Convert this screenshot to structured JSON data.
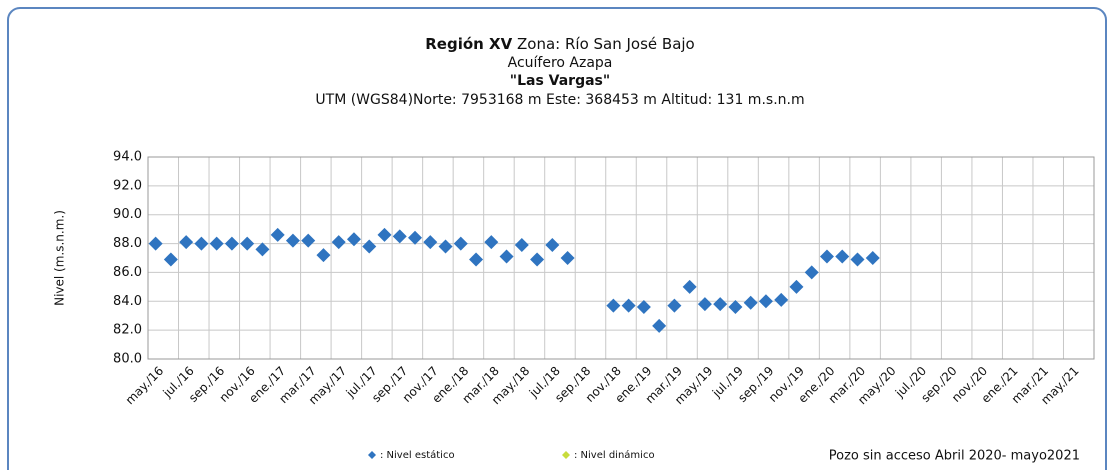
{
  "chart_data": {
    "type": "scatter",
    "title": "Región XV",
    "zone": "Zona: Río San José Bajo",
    "aquifer": "Acuífero Azapa",
    "well": "\"Las Vargas\"",
    "location": "UTM (WGS84)Norte: 7953168 m Este: 368453 m  Altitud: 131 m.s.n.m",
    "y_label": "Nivel (m.s.n.m.)",
    "annotation": "Pozo sin acceso  Abril 2020- mayo2021",
    "xlim": [
      "2016-05",
      "2021-07"
    ],
    "xticks": [
      {
        "value": "2016-05",
        "label": "may./16"
      },
      {
        "value": "2016-07",
        "label": "jul./16"
      },
      {
        "value": "2016-09",
        "label": "sep./16"
      },
      {
        "value": "2016-11",
        "label": "nov./16"
      },
      {
        "value": "2017-01",
        "label": "ene./17"
      },
      {
        "value": "2017-03",
        "label": "mar./17"
      },
      {
        "value": "2017-05",
        "label": "may./17"
      },
      {
        "value": "2017-07",
        "label": "jul./17"
      },
      {
        "value": "2017-09",
        "label": "sep./17"
      },
      {
        "value": "2017-11",
        "label": "nov./17"
      },
      {
        "value": "2018-01",
        "label": "ene./18"
      },
      {
        "value": "2018-03",
        "label": "mar./18"
      },
      {
        "value": "2018-05",
        "label": "may./18"
      },
      {
        "value": "2018-07",
        "label": "jul./18"
      },
      {
        "value": "2018-09",
        "label": "sep./18"
      },
      {
        "value": "2018-11",
        "label": "nov./18"
      },
      {
        "value": "2019-01",
        "label": "ene./19"
      },
      {
        "value": "2019-03",
        "label": "mar./19"
      },
      {
        "value": "2019-05",
        "label": "may./19"
      },
      {
        "value": "2019-07",
        "label": "jul./19"
      },
      {
        "value": "2019-09",
        "label": "sep./19"
      },
      {
        "value": "2019-11",
        "label": "nov./19"
      },
      {
        "value": "2020-01",
        "label": "ene./20"
      },
      {
        "value": "2020-03",
        "label": "mar./20"
      },
      {
        "value": "2020-05",
        "label": "may./20"
      },
      {
        "value": "2020-07",
        "label": "jul./20"
      },
      {
        "value": "2020-09",
        "label": "sep./20"
      },
      {
        "value": "2020-11",
        "label": "nov./20"
      },
      {
        "value": "2021-01",
        "label": "ene./21"
      },
      {
        "value": "2021-03",
        "label": "mar./21"
      },
      {
        "value": "2021-05",
        "label": "may./21"
      }
    ],
    "ylim": [
      80,
      94
    ],
    "yticks": [
      {
        "value": 80,
        "label": "80.0"
      },
      {
        "value": 82,
        "label": "82.0"
      },
      {
        "value": 84,
        "label": "84.0"
      },
      {
        "value": 86,
        "label": "86.0"
      },
      {
        "value": 88,
        "label": "88.0"
      },
      {
        "value": 90,
        "label": "90.0"
      },
      {
        "value": 92,
        "label": "92.0"
      },
      {
        "value": 94,
        "label": "94.0"
      }
    ],
    "grid": true,
    "series": [
      {
        "name": ": Nivel estático",
        "color": "#2f74c0",
        "x": [
          "2016-05",
          "2016-06",
          "2016-07",
          "2016-08",
          "2016-09",
          "2016-10",
          "2016-11",
          "2016-12",
          "2017-01",
          "2017-02",
          "2017-03",
          "2017-04",
          "2017-05",
          "2017-06",
          "2017-07",
          "2017-08",
          "2017-09",
          "2017-10",
          "2017-11",
          "2017-12",
          "2018-01",
          "2018-02",
          "2018-03",
          "2018-04",
          "2018-05",
          "2018-06",
          "2018-07",
          "2018-08",
          "2018-11",
          "2018-12",
          "2019-01",
          "2019-02",
          "2019-03",
          "2019-04",
          "2019-05",
          "2019-06",
          "2019-07",
          "2019-08",
          "2019-09",
          "2019-10",
          "2019-11",
          "2019-12",
          "2020-01",
          "2020-02",
          "2020-03",
          "2020-04"
        ],
        "values": [
          88.0,
          86.9,
          88.1,
          88.0,
          88.0,
          88.0,
          88.0,
          87.6,
          88.6,
          88.2,
          88.2,
          87.2,
          88.1,
          88.3,
          87.8,
          88.6,
          88.5,
          88.4,
          88.1,
          87.8,
          88.0,
          86.9,
          88.1,
          87.1,
          87.9,
          86.9,
          87.9,
          87.0,
          83.7,
          83.7,
          83.6,
          82.3,
          83.7,
          85.0,
          83.8,
          83.8,
          83.6,
          83.9,
          84.0,
          84.1,
          85.0,
          86.0,
          87.1,
          87.1,
          86.9,
          87.0
        ]
      },
      {
        "name": ": Nivel dinámico",
        "color": "#c8dc3c",
        "x": [],
        "values": []
      }
    ]
  }
}
